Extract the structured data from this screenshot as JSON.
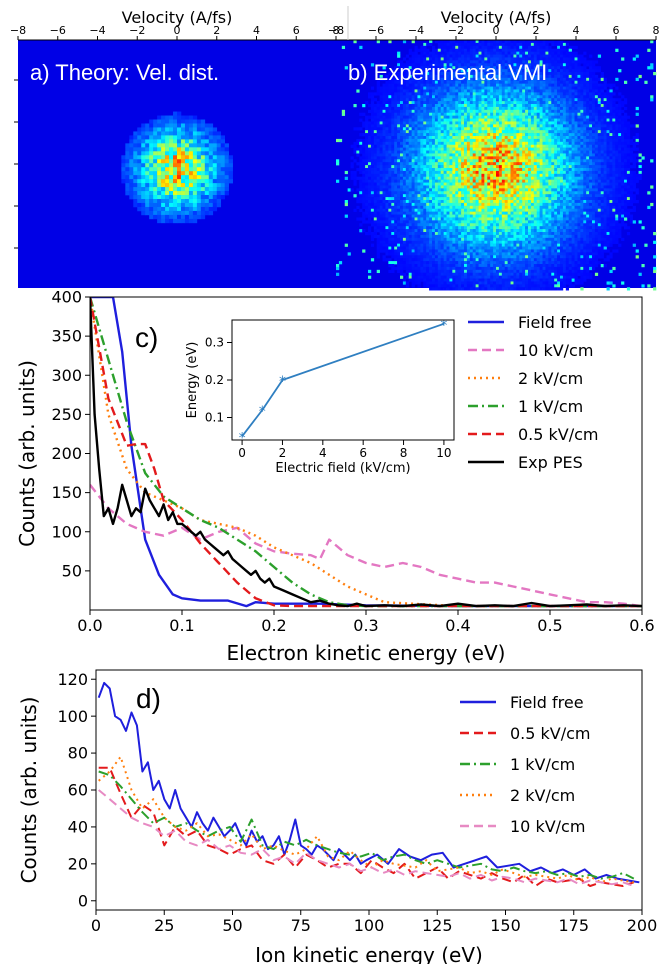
{
  "chart_data": [
    {
      "panel": "a",
      "type": "heatmap",
      "title": "a) Theory: Vel. dist.",
      "xlabel": "Velocity (A/fs)",
      "xlim": [
        -8,
        8
      ],
      "xticks": [
        "−8",
        "−6",
        "−4",
        "−2",
        "0",
        "2",
        "4",
        "6",
        "8"
      ],
      "center_velocity": [
        0,
        0
      ],
      "spot_radius_velocity": 2.8,
      "colormap": "jet"
    },
    {
      "panel": "b",
      "type": "heatmap",
      "title": "b) Experimental  VMI",
      "xlabel": "Velocity (A/fs)",
      "xlim": [
        -8,
        8
      ],
      "xticks": [
        "−8",
        "−6",
        "−4",
        "−2",
        "0",
        "2",
        "4",
        "6",
        "8"
      ],
      "center_velocity": [
        0,
        0
      ],
      "spot_radius_velocity": 4.5,
      "colormap": "jet"
    },
    {
      "panel": "c",
      "type": "line",
      "panel_label": "c)",
      "xlabel": "Electron kinetic energy (eV)",
      "ylabel": "Counts (arb. units)",
      "xlim": [
        0,
        0.6
      ],
      "ylim": [
        0,
        400
      ],
      "xticks": [
        0.0,
        0.1,
        0.2,
        0.3,
        0.4,
        0.5,
        0.6
      ],
      "xtick_labels": [
        "0.0",
        "0.1",
        "0.2",
        "0.3",
        "0.4",
        "0.5",
        "0.6"
      ],
      "yticks": [
        50,
        100,
        150,
        200,
        250,
        300,
        350,
        400
      ],
      "legend_position": "upper-right",
      "series": [
        {
          "name": "Field free",
          "color": "#1f1fdd",
          "dash": "solid",
          "x": [
            0.0,
            0.015,
            0.025,
            0.035,
            0.045,
            0.06,
            0.075,
            0.09,
            0.1,
            0.12,
            0.15,
            0.17,
            0.18,
            0.2,
            0.25,
            0.3,
            0.4,
            0.5,
            0.6
          ],
          "y": [
            400,
            400,
            400,
            330,
            210,
            90,
            45,
            20,
            15,
            12,
            12,
            5,
            10,
            8,
            8,
            6,
            5,
            5,
            5
          ]
        },
        {
          "name": "10 kV/cm",
          "color": "#e377c2",
          "dash": "dashed",
          "x": [
            0.0,
            0.02,
            0.04,
            0.06,
            0.08,
            0.1,
            0.12,
            0.14,
            0.16,
            0.18,
            0.2,
            0.22,
            0.24,
            0.25,
            0.26,
            0.28,
            0.3,
            0.32,
            0.34,
            0.36,
            0.38,
            0.4,
            0.42,
            0.44,
            0.46,
            0.48,
            0.5,
            0.52,
            0.54,
            0.56,
            0.58,
            0.6
          ],
          "y": [
            160,
            130,
            110,
            100,
            95,
            105,
            90,
            100,
            105,
            85,
            75,
            72,
            70,
            65,
            90,
            70,
            60,
            55,
            60,
            55,
            45,
            40,
            35,
            35,
            30,
            25,
            20,
            15,
            10,
            10,
            8,
            5
          ]
        },
        {
          "name": "2 kV/cm",
          "color": "#ff7f0e",
          "dash": "dotted",
          "x": [
            0.0,
            0.02,
            0.04,
            0.06,
            0.08,
            0.1,
            0.12,
            0.14,
            0.16,
            0.18,
            0.2,
            0.22,
            0.24,
            0.26,
            0.28,
            0.3,
            0.32,
            0.35,
            0.4,
            0.5,
            0.6
          ],
          "y": [
            400,
            250,
            180,
            150,
            140,
            130,
            115,
            110,
            105,
            95,
            80,
            70,
            60,
            45,
            30,
            20,
            10,
            8,
            5,
            5,
            5
          ]
        },
        {
          "name": "1 kV/cm",
          "color": "#2ca02c",
          "dash": "dashdot",
          "x": [
            0.0,
            0.02,
            0.04,
            0.06,
            0.08,
            0.1,
            0.12,
            0.14,
            0.16,
            0.18,
            0.2,
            0.22,
            0.24,
            0.26,
            0.28,
            0.3,
            0.4,
            0.5,
            0.6
          ],
          "y": [
            400,
            320,
            240,
            175,
            145,
            130,
            115,
            105,
            90,
            75,
            55,
            35,
            20,
            10,
            6,
            5,
            5,
            5,
            5
          ]
        },
        {
          "name": "0.5 kV/cm",
          "color": "#e31a1c",
          "dash": "dashed",
          "x": [
            0.0,
            0.02,
            0.04,
            0.05,
            0.06,
            0.07,
            0.08,
            0.1,
            0.12,
            0.14,
            0.16,
            0.18,
            0.2,
            0.22,
            0.25,
            0.3,
            0.4,
            0.5,
            0.6
          ],
          "y": [
            400,
            270,
            210,
            212,
            212,
            180,
            140,
            115,
            85,
            60,
            35,
            15,
            6,
            5,
            5,
            5,
            5,
            5,
            5
          ]
        },
        {
          "name": "Exp PES",
          "color": "#000000",
          "dash": "solid",
          "x": [
            0.0,
            0.005,
            0.01,
            0.015,
            0.02,
            0.025,
            0.03,
            0.035,
            0.04,
            0.045,
            0.05,
            0.055,
            0.06,
            0.065,
            0.07,
            0.075,
            0.08,
            0.085,
            0.09,
            0.095,
            0.1,
            0.105,
            0.11,
            0.115,
            0.12,
            0.125,
            0.13,
            0.135,
            0.14,
            0.145,
            0.15,
            0.155,
            0.16,
            0.165,
            0.17,
            0.175,
            0.18,
            0.185,
            0.19,
            0.195,
            0.2,
            0.21,
            0.22,
            0.23,
            0.24,
            0.25,
            0.26,
            0.27,
            0.28,
            0.29,
            0.3,
            0.32,
            0.34,
            0.36,
            0.38,
            0.4,
            0.42,
            0.44,
            0.46,
            0.48,
            0.5,
            0.52,
            0.54,
            0.56,
            0.58,
            0.6
          ],
          "y": [
            400,
            250,
            180,
            120,
            130,
            110,
            130,
            160,
            140,
            120,
            130,
            125,
            155,
            140,
            130,
            120,
            135,
            115,
            125,
            110,
            110,
            105,
            100,
            95,
            100,
            90,
            85,
            80,
            75,
            70,
            75,
            65,
            60,
            55,
            50,
            45,
            50,
            40,
            35,
            40,
            30,
            25,
            20,
            15,
            10,
            12,
            8,
            6,
            5,
            8,
            5,
            6,
            5,
            7,
            5,
            8,
            5,
            6,
            5,
            9,
            5,
            6,
            7,
            5,
            6,
            5
          ]
        }
      ]
    },
    {
      "panel": "c-inset",
      "type": "line",
      "xlabel": "Electric field (kV/cm)",
      "ylabel": "Energy (eV)",
      "xlim": [
        -0.5,
        10.5
      ],
      "ylim": [
        0.04,
        0.36
      ],
      "xticks": [
        0,
        2,
        4,
        6,
        8,
        10
      ],
      "yticks": [
        0.1,
        0.2,
        0.3
      ],
      "ytick_labels": [
        "0.1",
        "0.2",
        "0.3"
      ],
      "series": [
        {
          "name": "",
          "color": "#2f7fc1",
          "dash": "solid",
          "marker": "star",
          "x": [
            0,
            1,
            2,
            10
          ],
          "y": [
            0.05,
            0.12,
            0.2,
            0.35
          ]
        }
      ]
    },
    {
      "panel": "d",
      "type": "line",
      "panel_label": "d)",
      "xlabel": "Ion kinetic energy (eV)",
      "ylabel": "Counts (arb. units)",
      "xlim": [
        0,
        200
      ],
      "ylim": [
        -5,
        125
      ],
      "xticks": [
        0,
        25,
        50,
        75,
        100,
        125,
        150,
        175,
        200
      ],
      "yticks": [
        0,
        20,
        40,
        60,
        80,
        100,
        120
      ],
      "legend_position": "upper-right",
      "series": [
        {
          "name": "Field free",
          "color": "#1f1fdd",
          "dash": "solid",
          "x": [
            1,
            3,
            5,
            7,
            9,
            11,
            13,
            15,
            17,
            19,
            21,
            23,
            25,
            27,
            29,
            31,
            33,
            35,
            37,
            39,
            41,
            43,
            45,
            47,
            49,
            51,
            53,
            55,
            57,
            59,
            61,
            63,
            65,
            67,
            69,
            71,
            73,
            75,
            77,
            79,
            81,
            83,
            85,
            87,
            89,
            91,
            93,
            95,
            97,
            99,
            103,
            107,
            111,
            115,
            119,
            123,
            127,
            131,
            135,
            139,
            143,
            147,
            151,
            155,
            159,
            163,
            167,
            171,
            175,
            179,
            183,
            187,
            191,
            195,
            199
          ],
          "y": [
            110,
            118,
            115,
            100,
            98,
            92,
            102,
            95,
            70,
            75,
            60,
            65,
            55,
            50,
            60,
            50,
            45,
            40,
            48,
            42,
            38,
            45,
            40,
            35,
            38,
            42,
            35,
            30,
            38,
            32,
            35,
            28,
            30,
            35,
            25,
            33,
            44,
            30,
            28,
            25,
            30,
            28,
            25,
            22,
            28,
            25,
            22,
            25,
            20,
            22,
            25,
            20,
            28,
            24,
            22,
            25,
            26,
            18,
            20,
            22,
            24,
            18,
            19,
            20,
            16,
            18,
            15,
            17,
            14,
            17,
            12,
            14,
            12,
            11,
            10
          ]
        },
        {
          "name": "0.5 kV/cm",
          "color": "#e31a1c",
          "dash": "dashed",
          "x": [
            1,
            5,
            9,
            13,
            17,
            21,
            25,
            29,
            33,
            37,
            41,
            45,
            49,
            53,
            57,
            61,
            65,
            69,
            73,
            77,
            81,
            85,
            89,
            93,
            97,
            101,
            105,
            109,
            113,
            117,
            121,
            125,
            129,
            133,
            137,
            141,
            145,
            149,
            153,
            157,
            161,
            165,
            169,
            173,
            177,
            181,
            185,
            189,
            193,
            197
          ],
          "y": [
            72,
            72,
            58,
            45,
            52,
            48,
            30,
            40,
            35,
            38,
            30,
            28,
            25,
            28,
            30,
            22,
            20,
            25,
            18,
            25,
            22,
            18,
            20,
            20,
            15,
            22,
            18,
            15,
            20,
            12,
            15,
            18,
            12,
            16,
            14,
            12,
            15,
            12,
            10,
            14,
            8,
            12,
            10,
            11,
            12,
            8,
            10,
            9,
            8,
            10
          ]
        },
        {
          "name": "1 kV/cm",
          "color": "#2ca02c",
          "dash": "dashdot",
          "x": [
            1,
            5,
            9,
            13,
            17,
            21,
            25,
            29,
            33,
            37,
            41,
            45,
            49,
            53,
            57,
            61,
            65,
            69,
            73,
            77,
            81,
            85,
            89,
            93,
            97,
            101,
            105,
            109,
            113,
            117,
            121,
            125,
            129,
            133,
            137,
            141,
            145,
            149,
            153,
            157,
            161,
            165,
            169,
            173,
            177,
            181,
            185,
            189,
            193,
            197
          ],
          "y": [
            70,
            68,
            62,
            55,
            48,
            42,
            45,
            40,
            42,
            38,
            35,
            38,
            40,
            32,
            44,
            30,
            28,
            32,
            30,
            33,
            30,
            28,
            26,
            25,
            24,
            26,
            22,
            24,
            25,
            22,
            20,
            22,
            20,
            18,
            19,
            20,
            17,
            16,
            18,
            16,
            15,
            16,
            14,
            15,
            13,
            14,
            12,
            13,
            15,
            12
          ]
        },
        {
          "name": "2 kV/cm",
          "color": "#ff7f0e",
          "dash": "dotted",
          "x": [
            1,
            5,
            9,
            13,
            17,
            21,
            25,
            29,
            33,
            37,
            41,
            45,
            49,
            53,
            57,
            61,
            65,
            69,
            73,
            77,
            81,
            85,
            89,
            93,
            97,
            101,
            105,
            109,
            113,
            117,
            121,
            125,
            129,
            133,
            137,
            141,
            145,
            149,
            153,
            157,
            161,
            165,
            169,
            173,
            177,
            181,
            185,
            189,
            193,
            197
          ],
          "y": [
            65,
            70,
            78,
            60,
            50,
            55,
            45,
            40,
            38,
            42,
            35,
            36,
            33,
            30,
            36,
            28,
            30,
            27,
            25,
            28,
            35,
            24,
            22,
            27,
            22,
            18,
            22,
            20,
            19,
            18,
            22,
            16,
            17,
            18,
            15,
            16,
            14,
            17,
            15,
            13,
            14,
            13,
            12,
            14,
            11,
            13,
            10,
            12,
            11,
            10
          ]
        },
        {
          "name": "10 kV/cm",
          "color": "#e78ac3",
          "dash": "dashed",
          "x": [
            1,
            5,
            9,
            13,
            17,
            21,
            25,
            29,
            33,
            37,
            41,
            45,
            49,
            53,
            57,
            61,
            65,
            69,
            73,
            77,
            81,
            85,
            89,
            93,
            97,
            101,
            105,
            109,
            113,
            117,
            121,
            125,
            129,
            133,
            137,
            141,
            145,
            149,
            153,
            157,
            161,
            165,
            169,
            173,
            177,
            181,
            185,
            189,
            193,
            197
          ],
          "y": [
            60,
            55,
            50,
            45,
            42,
            40,
            35,
            38,
            32,
            30,
            33,
            28,
            30,
            26,
            25,
            28,
            22,
            24,
            20,
            26,
            22,
            20,
            18,
            20,
            16,
            18,
            15,
            17,
            14,
            16,
            15,
            14,
            13,
            15,
            12,
            14,
            11,
            13,
            12,
            10,
            12,
            11,
            10,
            12,
            9,
            11,
            10,
            9,
            10,
            8
          ]
        }
      ]
    }
  ]
}
